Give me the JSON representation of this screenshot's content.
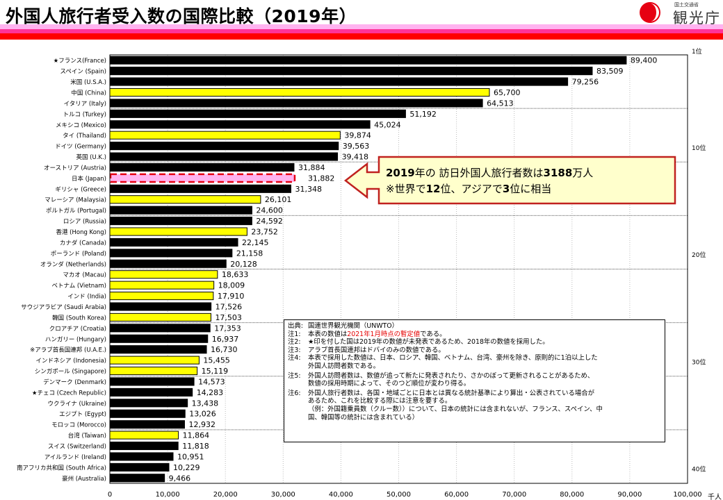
{
  "header": {
    "title": "外国人旅行者受入数の国際比較（2019年）",
    "logo_small": "国土交通省",
    "logo_big": "観光庁"
  },
  "colors": {
    "asia_bar": "#ffff00",
    "other_bar": "#000000",
    "japan_fill": "#ffb3f0",
    "japan_border": "#e60012",
    "callout_fill": "#ffffcc",
    "callout_border": "#c0211f"
  },
  "callout": {
    "line1_a": "2019",
    "line1_b": "年の 訪日外国人旅行者数は",
    "line1_c": "3188",
    "line1_d": "万人",
    "line2_a": "※世界で",
    "line2_b": "12",
    "line2_c": "位、アジアで",
    "line2_d": "3",
    "line2_e": "位に相当"
  },
  "notes": {
    "source_key": "出典:",
    "source": "国連世界観光機関（UNWTO）",
    "items": [
      {
        "key": "注1:",
        "pre": "本表の数値は",
        "red": "2021年1月時点の暫定値",
        "post": "である。"
      },
      {
        "key": "注2:",
        "text": "★印を付した国は2019年の数値が未発表であるため、2018年の数値を採用した。"
      },
      {
        "key": "注3:",
        "text": "アラブ首長国連邦はドバイのみの数値である。"
      },
      {
        "key": "注4:",
        "text": "本表で採用した数値は、日本、ロシア、韓国、ベトナム、台湾、豪州を除き、原則的に1泊以上した",
        "cont": "外国人訪問者数である。"
      },
      {
        "key": "注5:",
        "text": "外国人訪問者数は、数値が追って新たに発表されたり、さかのぼって更新されることがあるため、",
        "cont": "数値の採用時期によって、そのつど順位が変わり得る。"
      },
      {
        "key": "注6:",
        "text": "外国人旅行者数は、各国・地域ごとに日本とは異なる統計基準により算出・公表されている場合が",
        "cont": "あるため、これを比較する際には注意を要する。",
        "cont2": "（例：外国籍乗員数（クルー数））について、日本の統計には含まれないが、フランス、スペイン、中",
        "cont3": "国、韓国等の統計には含まれている）"
      }
    ]
  },
  "chart_data": {
    "type": "bar",
    "orientation": "horizontal",
    "title": "外国人旅行者受入数の国際比較（2019年）",
    "xlabel": "",
    "unit_label": "千人",
    "xlim": [
      0,
      100000
    ],
    "xticks": [
      0,
      10000,
      20000,
      30000,
      40000,
      50000,
      60000,
      70000,
      80000,
      90000,
      100000
    ],
    "xtick_labels": [
      "0",
      "10,000",
      "20,000",
      "30,000",
      "40,000",
      "50,000",
      "60,000",
      "70,000",
      "80,000",
      "90,000",
      "100,000"
    ],
    "grid": "vertical dotted",
    "rank_labels": [
      {
        "rank": 1,
        "label": "1位"
      },
      {
        "rank": 10,
        "label": "10位"
      },
      {
        "rank": 20,
        "label": "20位"
      },
      {
        "rank": 30,
        "label": "30位"
      },
      {
        "rank": 40,
        "label": "40位"
      }
    ],
    "legend": "none (yellow = Asia, black = other, pink dashed = Japan)",
    "categories": [
      "★フランス(France)",
      "スペイン (Spain)",
      "米国 (U.S.A.)",
      "中国 (China)",
      "イタリア (Italy)",
      "トルコ (Turkey)",
      "メキシコ (Mexico)",
      "タイ (Thailand)",
      "ドイツ (Germany)",
      "英国 (U.K.)",
      "オーストリア (Austria)",
      "日本 (Japan)",
      "ギリシャ (Greece)",
      "マレーシア (Malaysia)",
      "ポルトガル (Portugal)",
      "ロシア (Russia)",
      "香港 (Hong Kong)",
      "カナダ (Canada)",
      "ポーランド (Poland)",
      "オランダ (Netherlands)",
      "マカオ (Macau)",
      "ベトナム (Vietnam)",
      "インド (India)",
      "サウジアラビア (Saudi Arabia)",
      "韓国 (South Korea)",
      "クロアチア (Croatia)",
      "ハンガリー (Hungary)",
      "※アラブ首長国連邦 (U.A.E.)",
      "インドネシア (Indonesia)",
      "シンガポール (Singapore)",
      "デンマーク (Denmark)",
      "★チェコ (Czech Republic)",
      "ウクライナ (Ukraine)",
      "エジプト (Egypt)",
      "モロッコ (Morocco)",
      "台湾 (Taiwan)",
      "スイス (Switzerland)",
      "アイルランド (Ireland)",
      "南アフリカ共和国 (South Africa)",
      "豪州 (Australia)"
    ],
    "values": [
      89400,
      83509,
      79256,
      65700,
      64513,
      51192,
      45024,
      39874,
      39563,
      39418,
      31884,
      31882,
      31348,
      26101,
      24600,
      24592,
      23752,
      22145,
      21158,
      20128,
      18633,
      18009,
      17910,
      17526,
      17503,
      17353,
      16937,
      16730,
      15455,
      15119,
      14573,
      14283,
      13438,
      13026,
      12932,
      11864,
      11818,
      10951,
      10229,
      9466
    ],
    "value_labels": [
      "89,400",
      "83,509",
      "79,256",
      "65,700",
      "64,513",
      "51,192",
      "45,024",
      "39,874",
      "39,563",
      "39,418",
      "31,884",
      "31,882",
      "31,348",
      "26,101",
      "24,600",
      "24,592",
      "23,752",
      "22,145",
      "21,158",
      "20,128",
      "18,633",
      "18,009",
      "17,910",
      "17,526",
      "17,503",
      "17,353",
      "16,937",
      "16,730",
      "15,455",
      "15,119",
      "14,573",
      "14,283",
      "13,438",
      "13,026",
      "12,932",
      "11,864",
      "11,818",
      "10,951",
      "10,229",
      "9,466"
    ],
    "group": [
      "other",
      "other",
      "other",
      "asia",
      "other",
      "other",
      "other",
      "asia",
      "other",
      "other",
      "other",
      "japan",
      "other",
      "asia",
      "other",
      "other",
      "asia",
      "other",
      "other",
      "other",
      "asia",
      "asia",
      "asia",
      "other",
      "asia",
      "other",
      "other",
      "other",
      "asia",
      "asia",
      "other",
      "other",
      "other",
      "other",
      "other",
      "asia",
      "other",
      "other",
      "other",
      "other"
    ]
  }
}
